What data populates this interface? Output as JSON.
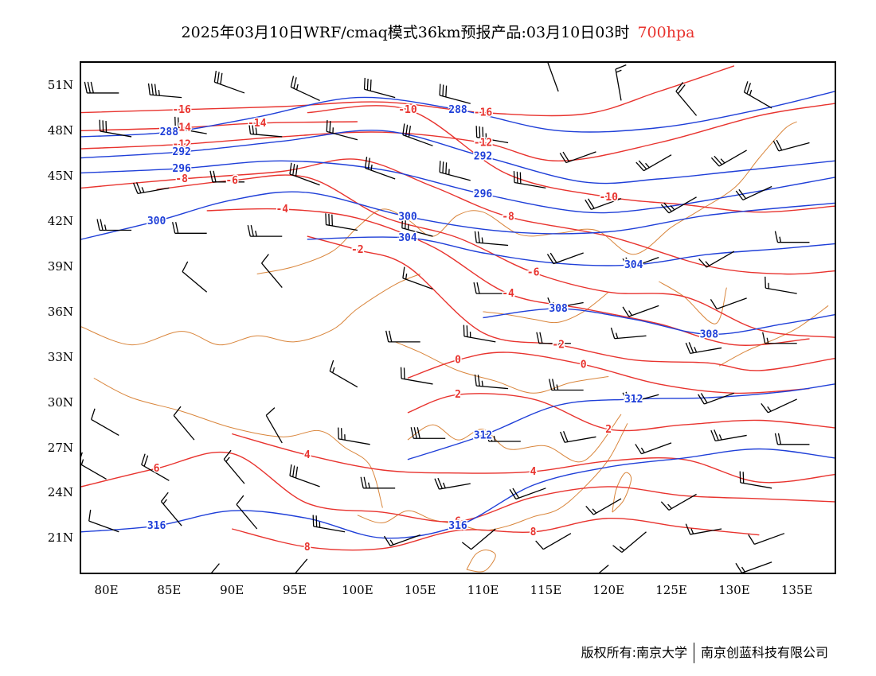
{
  "title": {
    "text": "2025年03月10日WRF/cmaq模式36km预报产品:03月10日03时",
    "level": "700hpa"
  },
  "colors": {
    "temperature": "#e8332e",
    "height": "#1f3fd8",
    "boundary": "#d9853b",
    "wind": "#000000"
  },
  "lat_labels": [
    "51N",
    "48N",
    "45N",
    "42N",
    "39N",
    "36N",
    "33N",
    "30N",
    "27N",
    "24N",
    "21N"
  ],
  "lon_labels": [
    "80E",
    "85E",
    "90E",
    "95E",
    "100E",
    "105E",
    "110E",
    "115E",
    "120E",
    "125E",
    "130E",
    "135E"
  ],
  "extent": {
    "lon": [
      78,
      138
    ],
    "lat": [
      18.7,
      52.5
    ]
  },
  "height_contours": [
    {
      "label": "288",
      "lons": [
        78,
        85,
        92,
        100,
        108,
        116,
        124,
        132,
        138
      ],
      "lats": [
        47.6,
        47.9,
        48.9,
        50.2,
        49.4,
        48.0,
        48.2,
        49.4,
        50.6
      ]
    },
    {
      "label": "292",
      "lons": [
        78,
        86,
        94,
        102,
        110,
        118,
        124,
        130,
        138
      ],
      "lats": [
        46.2,
        46.6,
        47.3,
        48.0,
        46.3,
        44.6,
        44.8,
        45.3,
        46.0
      ]
    },
    {
      "label": "296",
      "lons": [
        78,
        86,
        94,
        102,
        110,
        118,
        124,
        130,
        138
      ],
      "lats": [
        45.2,
        45.5,
        46.0,
        45.4,
        43.8,
        42.6,
        42.9,
        43.7,
        44.9
      ]
    },
    {
      "label": "300",
      "lons": [
        78,
        84,
        90,
        96,
        104,
        112,
        120,
        128,
        138
      ],
      "lats": [
        40.8,
        42.0,
        43.4,
        43.9,
        42.3,
        41.3,
        41.3,
        42.4,
        43.2
      ]
    },
    {
      "label": "304",
      "lons": [
        96,
        104,
        110,
        116,
        122,
        128,
        134,
        138
      ],
      "lats": [
        40.8,
        40.9,
        39.9,
        39.2,
        39.1,
        39.8,
        40.2,
        40.5
      ]
    },
    {
      "label": "308",
      "lons": [
        110,
        116,
        122,
        128,
        134,
        138
      ],
      "lats": [
        35.6,
        36.2,
        35.5,
        34.5,
        35.2,
        35.8
      ]
    },
    {
      "label": "312",
      "lons": [
        104,
        110,
        116,
        122,
        128,
        134,
        138
      ],
      "lats": [
        26.2,
        27.8,
        29.8,
        30.2,
        30.3,
        30.7,
        31.2
      ]
    },
    {
      "label": "316",
      "lons": [
        78,
        84,
        90,
        96,
        102,
        108,
        114,
        120,
        126,
        132,
        138
      ],
      "lats": [
        21.4,
        21.8,
        22.8,
        22.3,
        21.0,
        21.8,
        24.5,
        25.7,
        26.3,
        26.9,
        26.3
      ]
    }
  ],
  "temp_contours": [
    {
      "label": "-16",
      "lons": [
        78,
        86,
        94,
        102,
        110,
        118,
        124,
        130
      ],
      "lats": [
        49.2,
        49.4,
        49.6,
        49.9,
        49.2,
        49.1,
        50.6,
        52.3
      ]
    },
    {
      "label": "-14",
      "lons": [
        78,
        86,
        92,
        100
      ],
      "lats": [
        48.0,
        48.2,
        48.5,
        48.6
      ]
    },
    {
      "label": "-12",
      "lons": [
        78,
        86,
        94,
        102,
        110,
        116,
        124,
        132,
        138
      ],
      "lats": [
        46.8,
        47.1,
        47.6,
        47.9,
        47.2,
        46.0,
        47.2,
        49.0,
        49.8
      ]
    },
    {
      "label": "-10",
      "lons": [
        96,
        104,
        112,
        120,
        126,
        132,
        138
      ],
      "lats": [
        49.2,
        49.4,
        45.1,
        43.6,
        43.1,
        42.6,
        43.0
      ]
    },
    {
      "label": "-8",
      "lons": [
        78,
        86,
        94,
        100,
        106,
        112,
        120,
        128,
        134,
        138
      ],
      "lats": [
        44.2,
        44.8,
        45.3,
        46.1,
        44.3,
        42.3,
        41.0,
        39.0,
        38.5,
        38.7
      ]
    },
    {
      "label": "-6",
      "lons": [
        84,
        90,
        96,
        102,
        108,
        114,
        120,
        126,
        132,
        138
      ],
      "lats": [
        44.1,
        44.7,
        44.9,
        42.3,
        40.9,
        38.6,
        37.3,
        37.0,
        34.8,
        34.3
      ]
    },
    {
      "label": "-4",
      "lons": [
        88,
        94,
        100,
        106,
        112,
        118,
        124,
        130,
        136
      ],
      "lats": [
        42.7,
        42.8,
        42.2,
        40.3,
        37.2,
        36.2,
        35.2,
        33.8,
        34.2
      ]
    },
    {
      "label": "-2",
      "lons": [
        96,
        100,
        104,
        110,
        116,
        122,
        128,
        132,
        138
      ],
      "lats": [
        41.0,
        40.1,
        39.0,
        34.6,
        33.8,
        32.8,
        32.6,
        32.1,
        32.9
      ]
    },
    {
      "label": "0",
      "lons": [
        104,
        108,
        112,
        118,
        124,
        130,
        136
      ],
      "lats": [
        31.6,
        32.8,
        33.3,
        32.5,
        31.2,
        30.6,
        30.9
      ]
    },
    {
      "label": "2",
      "lons": [
        104,
        108,
        114,
        120,
        126,
        132,
        138
      ],
      "lats": [
        29.3,
        30.5,
        30.2,
        28.2,
        28.5,
        28.8,
        28.3
      ]
    },
    {
      "label": "4",
      "lons": [
        90,
        96,
        102,
        108,
        114,
        120,
        126,
        132,
        138
      ],
      "lats": [
        27.9,
        26.5,
        25.5,
        25.3,
        25.4,
        26.1,
        26.2,
        24.7,
        25.2
      ]
    },
    {
      "label": "6",
      "lons": [
        78,
        84,
        90,
        96,
        102,
        108,
        114,
        120,
        126,
        132,
        138
      ],
      "lats": [
        24.4,
        25.6,
        26.6,
        23.3,
        22.7,
        22.1,
        23.7,
        24.4,
        23.8,
        23.6,
        23.4
      ]
    },
    {
      "label": "8",
      "lons": [
        90,
        96,
        102,
        108,
        114,
        120,
        126,
        132
      ],
      "lats": [
        21.6,
        20.4,
        20.3,
        21.5,
        21.4,
        22.3,
        21.7,
        21.2
      ]
    }
  ],
  "boundaries": [
    {
      "lons": [
        78,
        82,
        86,
        89,
        92,
        95,
        98,
        100,
        103,
        105
      ],
      "lats": [
        35.0,
        33.8,
        34.7,
        33.8,
        34.4,
        34.0,
        34.8,
        36.2,
        37.8,
        38.5
      ]
    },
    {
      "lons": [
        92,
        95,
        98,
        100,
        102,
        104,
        106,
        108,
        110,
        113,
        116,
        119,
        122,
        125,
        127,
        130,
        132,
        134,
        135
      ],
      "lats": [
        38.5,
        39.0,
        40.0,
        41.6,
        42.8,
        42.1,
        41.0,
        42.4,
        42.6,
        41.1,
        41.2,
        41.4,
        39.8,
        41.6,
        42.6,
        44.2,
        46.2,
        48.1,
        48.6
      ]
    },
    {
      "lons": [
        79,
        82,
        86,
        90,
        94,
        97,
        99,
        101,
        102
      ],
      "lats": [
        31.6,
        30.3,
        29.4,
        28.3,
        27.7,
        28.1,
        27.0,
        25.8,
        23.0
      ]
    },
    {
      "lons": [
        100,
        102,
        104,
        106,
        108,
        110,
        112,
        114,
        116,
        118,
        120,
        121.5
      ],
      "lats": [
        22.5,
        22.0,
        22.8,
        22.2,
        21.9,
        21.5,
        21.8,
        22.4,
        22.9,
        24.3,
        26.2,
        28.6
      ]
    },
    {
      "lons": [
        103,
        105,
        108,
        111,
        114,
        117,
        120
      ],
      "lats": [
        34.0,
        33.3,
        32.1,
        31.4,
        30.6,
        31.3,
        31.7
      ]
    },
    {
      "lons": [
        104,
        106,
        108,
        110,
        112,
        115,
        118,
        121
      ],
      "lats": [
        27.5,
        28.5,
        27.5,
        28.2,
        26.9,
        27.1,
        26.1,
        29.2
      ]
    },
    {
      "lons": [
        110,
        112,
        114,
        116,
        118,
        120
      ],
      "lats": [
        36.0,
        35.8,
        35.5,
        35.3,
        36.0,
        37.3
      ]
    },
    {
      "lons": [
        120.3,
        121.2,
        121.8,
        121.3,
        120.6,
        120.3
      ],
      "lats": [
        22.7,
        23.5,
        24.9,
        25.3,
        24.2,
        22.7
      ]
    },
    {
      "lons": [
        108.7,
        110.1,
        111.0,
        110.3,
        109.4,
        108.7
      ],
      "lats": [
        18.9,
        18.8,
        19.8,
        20.2,
        19.9,
        18.9
      ]
    },
    {
      "lons": [
        124,
        126,
        128.5,
        129.4
      ],
      "lats": [
        38.0,
        37.0,
        35.2,
        37.6
      ]
    },
    {
      "lons": [
        128.8,
        131.0,
        133.3,
        135.2,
        137.5
      ],
      "lats": [
        32.4,
        33.4,
        34.2,
        35.0,
        36.4
      ]
    }
  ],
  "wind_barbs": [
    {
      "lon": 81,
      "lat": 50.5,
      "dir": 270,
      "spd": 30
    },
    {
      "lon": 86,
      "lat": 50.2,
      "dir": 275,
      "spd": 35
    },
    {
      "lon": 91,
      "lat": 50.5,
      "dir": 290,
      "spd": 30
    },
    {
      "lon": 97,
      "lat": 50.0,
      "dir": 295,
      "spd": 25
    },
    {
      "lon": 103,
      "lat": 50.2,
      "dir": 285,
      "spd": 30
    },
    {
      "lon": 109,
      "lat": 49.8,
      "dir": 285,
      "spd": 30
    },
    {
      "lon": 116,
      "lat": 50.6,
      "dir": 340,
      "spd": 10
    },
    {
      "lon": 121,
      "lat": 50.0,
      "dir": 350,
      "spd": 15
    },
    {
      "lon": 127,
      "lat": 49.0,
      "dir": 320,
      "spd": 20
    },
    {
      "lon": 133,
      "lat": 49.5,
      "dir": 300,
      "spd": 25
    },
    {
      "lon": 82,
      "lat": 47.6,
      "dir": 280,
      "spd": 30
    },
    {
      "lon": 88,
      "lat": 47.8,
      "dir": 280,
      "spd": 25
    },
    {
      "lon": 94,
      "lat": 47.6,
      "dir": 275,
      "spd": 30
    },
    {
      "lon": 100,
      "lat": 47.4,
      "dir": 285,
      "spd": 25
    },
    {
      "lon": 106,
      "lat": 47.0,
      "dir": 290,
      "spd": 30
    },
    {
      "lon": 112,
      "lat": 47.2,
      "dir": 280,
      "spd": 35
    },
    {
      "lon": 119,
      "lat": 46.6,
      "dir": 250,
      "spd": 20
    },
    {
      "lon": 125,
      "lat": 46.4,
      "dir": 240,
      "spd": 25
    },
    {
      "lon": 131,
      "lat": 46.7,
      "dir": 240,
      "spd": 25
    },
    {
      "lon": 136,
      "lat": 47.2,
      "dir": 255,
      "spd": 20
    },
    {
      "lon": 85,
      "lat": 44.2,
      "dir": 260,
      "spd": 25
    },
    {
      "lon": 91,
      "lat": 44.6,
      "dir": 270,
      "spd": 20
    },
    {
      "lon": 97,
      "lat": 44.4,
      "dir": 290,
      "spd": 30
    },
    {
      "lon": 103,
      "lat": 44.8,
      "dir": 290,
      "spd": 25
    },
    {
      "lon": 109,
      "lat": 44.7,
      "dir": 285,
      "spd": 35
    },
    {
      "lon": 115,
      "lat": 44.2,
      "dir": 280,
      "spd": 30
    },
    {
      "lon": 121,
      "lat": 43.5,
      "dir": 250,
      "spd": 20
    },
    {
      "lon": 127,
      "lat": 43.6,
      "dir": 240,
      "spd": 25
    },
    {
      "lon": 133,
      "lat": 44.3,
      "dir": 245,
      "spd": 20
    },
    {
      "lon": 82,
      "lat": 41.4,
      "dir": 270,
      "spd": 25
    },
    {
      "lon": 88,
      "lat": 41.2,
      "dir": 270,
      "spd": 20
    },
    {
      "lon": 94,
      "lat": 41.0,
      "dir": 270,
      "spd": 25
    },
    {
      "lon": 100,
      "lat": 41.4,
      "dir": 280,
      "spd": 30
    },
    {
      "lon": 106,
      "lat": 41.0,
      "dir": 285,
      "spd": 25
    },
    {
      "lon": 112,
      "lat": 40.4,
      "dir": 275,
      "spd": 25
    },
    {
      "lon": 118,
      "lat": 39.9,
      "dir": 250,
      "spd": 20
    },
    {
      "lon": 124,
      "lat": 39.6,
      "dir": 250,
      "spd": 20
    },
    {
      "lon": 130,
      "lat": 40.0,
      "dir": 240,
      "spd": 15
    },
    {
      "lon": 136,
      "lat": 40.6,
      "dir": 270,
      "spd": 15
    },
    {
      "lon": 88,
      "lat": 37.3,
      "dir": 310,
      "spd": 10
    },
    {
      "lon": 94,
      "lat": 37.6,
      "dir": 320,
      "spd": 10
    },
    {
      "lon": 106,
      "lat": 37.5,
      "dir": 290,
      "spd": 15
    },
    {
      "lon": 112,
      "lat": 37.2,
      "dir": 270,
      "spd": 20
    },
    {
      "lon": 118,
      "lat": 36.6,
      "dir": 260,
      "spd": 15
    },
    {
      "lon": 124,
      "lat": 36.4,
      "dir": 250,
      "spd": 15
    },
    {
      "lon": 131,
      "lat": 36.9,
      "dir": 250,
      "spd": 10
    },
    {
      "lon": 135,
      "lat": 37.2,
      "dir": 280,
      "spd": 15
    },
    {
      "lon": 105,
      "lat": 34.0,
      "dir": 270,
      "spd": 20
    },
    {
      "lon": 111,
      "lat": 34.0,
      "dir": 280,
      "spd": 25
    },
    {
      "lon": 117,
      "lat": 33.9,
      "dir": 270,
      "spd": 20
    },
    {
      "lon": 123,
      "lat": 34.4,
      "dir": 265,
      "spd": 15
    },
    {
      "lon": 129,
      "lat": 33.6,
      "dir": 260,
      "spd": 25
    },
    {
      "lon": 135,
      "lat": 33.9,
      "dir": 270,
      "spd": 15
    },
    {
      "lon": 100,
      "lat": 31.0,
      "dir": 300,
      "spd": 15
    },
    {
      "lon": 106,
      "lat": 31.2,
      "dir": 280,
      "spd": 20
    },
    {
      "lon": 112,
      "lat": 30.9,
      "dir": 275,
      "spd": 25
    },
    {
      "lon": 118,
      "lat": 30.8,
      "dir": 270,
      "spd": 25
    },
    {
      "lon": 124,
      "lat": 30.5,
      "dir": 255,
      "spd": 20
    },
    {
      "lon": 130,
      "lat": 30.6,
      "dir": 250,
      "spd": 20
    },
    {
      "lon": 135,
      "lat": 30.2,
      "dir": 245,
      "spd": 15
    },
    {
      "lon": 81,
      "lat": 27.8,
      "dir": 300,
      "spd": 10
    },
    {
      "lon": 87,
      "lat": 27.5,
      "dir": 320,
      "spd": 10
    },
    {
      "lon": 94,
      "lat": 27.3,
      "dir": 330,
      "spd": 10
    },
    {
      "lon": 101,
      "lat": 27.2,
      "dir": 280,
      "spd": 25
    },
    {
      "lon": 107,
      "lat": 27.6,
      "dir": 270,
      "spd": 30
    },
    {
      "lon": 113,
      "lat": 27.4,
      "dir": 270,
      "spd": 25
    },
    {
      "lon": 119,
      "lat": 27.7,
      "dir": 260,
      "spd": 20
    },
    {
      "lon": 125,
      "lat": 27.3,
      "dir": 250,
      "spd": 15
    },
    {
      "lon": 131,
      "lat": 27.8,
      "dir": 260,
      "spd": 25
    },
    {
      "lon": 136,
      "lat": 27.2,
      "dir": 270,
      "spd": 20
    },
    {
      "lon": 80,
      "lat": 24.9,
      "dir": 300,
      "spd": 15
    },
    {
      "lon": 85,
      "lat": 24.8,
      "dir": 300,
      "spd": 20
    },
    {
      "lon": 91,
      "lat": 24.6,
      "dir": 320,
      "spd": 15
    },
    {
      "lon": 97,
      "lat": 24.4,
      "dir": 290,
      "spd": 30
    },
    {
      "lon": 103,
      "lat": 24.3,
      "dir": 270,
      "spd": 25
    },
    {
      "lon": 109,
      "lat": 24.6,
      "dir": 260,
      "spd": 25
    },
    {
      "lon": 115,
      "lat": 24.3,
      "dir": 250,
      "spd": 20
    },
    {
      "lon": 121,
      "lat": 23.6,
      "dir": 240,
      "spd": 15
    },
    {
      "lon": 127,
      "lat": 23.9,
      "dir": 240,
      "spd": 15
    },
    {
      "lon": 133,
      "lat": 24.3,
      "dir": 280,
      "spd": 20
    },
    {
      "lon": 81,
      "lat": 21.4,
      "dir": 290,
      "spd": 10
    },
    {
      "lon": 86,
      "lat": 21.8,
      "dir": 320,
      "spd": 15
    },
    {
      "lon": 92,
      "lat": 21.6,
      "dir": 320,
      "spd": 10
    },
    {
      "lon": 99,
      "lat": 21.4,
      "dir": 280,
      "spd": 25
    },
    {
      "lon": 105,
      "lat": 21.2,
      "dir": 250,
      "spd": 15
    },
    {
      "lon": 111,
      "lat": 21.6,
      "dir": 230,
      "spd": 10
    },
    {
      "lon": 117,
      "lat": 21.3,
      "dir": 240,
      "spd": 10
    },
    {
      "lon": 123,
      "lat": 21.4,
      "dir": 230,
      "spd": 15
    },
    {
      "lon": 129,
      "lat": 21.6,
      "dir": 260,
      "spd": 15
    },
    {
      "lon": 134,
      "lat": 21.3,
      "dir": 250,
      "spd": 10
    },
    {
      "lon": 89,
      "lat": 19.3,
      "dir": 220,
      "spd": 10
    },
    {
      "lon": 96,
      "lat": 19.6,
      "dir": 220,
      "spd": 10
    },
    {
      "lon": 120,
      "lat": 19.2,
      "dir": 230,
      "spd": 10
    },
    {
      "lon": 133,
      "lat": 19.4,
      "dir": 250,
      "spd": 15
    }
  ],
  "copyright": {
    "left": "版权所有:南京大学",
    "right": "南京创蓝科技有限公司"
  }
}
